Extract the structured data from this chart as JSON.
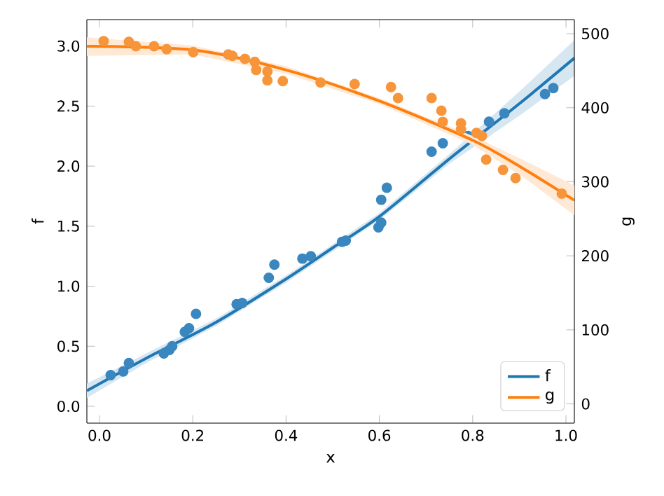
{
  "chart_data": {
    "type": "scatter",
    "xlabel": "x",
    "ylabel": "f",
    "y2label": "g",
    "xlim": [
      -0.027,
      1.018
    ],
    "ylim": [
      -0.14,
      3.22
    ],
    "y2lim": [
      -26,
      519
    ],
    "xticks": [
      {
        "value": 0,
        "label": "0.0"
      },
      {
        "value": 0.2,
        "label": "0.2"
      },
      {
        "value": 0.4,
        "label": "0.4"
      },
      {
        "value": 0.6,
        "label": "0.6"
      },
      {
        "value": 0.8,
        "label": "0.8"
      },
      {
        "value": 1,
        "label": "1.0"
      }
    ],
    "yticks": [
      {
        "value": 0,
        "label": "0.0"
      },
      {
        "value": 0.5,
        "label": "0.5"
      },
      {
        "value": 1,
        "label": "1.0"
      },
      {
        "value": 1.5,
        "label": "1.5"
      },
      {
        "value": 2,
        "label": "2.0"
      },
      {
        "value": 2.5,
        "label": "2.5"
      },
      {
        "value": 3,
        "label": "3.0"
      }
    ],
    "y2ticks": [
      0,
      100,
      200,
      300,
      400,
      500
    ],
    "legend": "bottom right",
    "series": [
      {
        "color": "#3a86bf",
        "x": [
          0.024,
          0.051,
          0.063,
          0.138,
          0.15,
          0.156,
          0.183,
          0.192,
          0.207,
          0.294,
          0.306,
          0.363,
          0.375,
          0.435,
          0.453,
          0.52,
          0.528,
          0.598,
          0.604,
          0.604,
          0.616,
          0.712,
          0.736,
          0.79,
          0.835,
          0.868,
          0.955,
          0.973
        ],
        "values": [
          0.26,
          0.29,
          0.36,
          0.44,
          0.47,
          0.5,
          0.62,
          0.65,
          0.77,
          0.85,
          0.86,
          1.07,
          1.18,
          1.23,
          1.25,
          1.37,
          1.38,
          1.49,
          1.53,
          1.72,
          1.82,
          2.12,
          2.19,
          2.25,
          2.37,
          2.44,
          2.6,
          2.65
        ]
      },
      {
        "type": "line",
        "name": "f",
        "color": "#1f77b4",
        "x": [
          -0.027,
          0.1,
          0.25,
          0.4,
          0.5,
          0.6,
          0.75,
          0.9,
          1.018
        ],
        "values": [
          0.13,
          0.4,
          0.7,
          1.06,
          1.32,
          1.58,
          2.06,
          2.52,
          2.9
        ],
        "lower": [
          0.07,
          0.36,
          0.67,
          1.03,
          1.29,
          1.55,
          2.02,
          2.42,
          2.75
        ],
        "upper": [
          0.19,
          0.44,
          0.73,
          1.09,
          1.35,
          1.61,
          2.1,
          2.62,
          3.05
        ]
      },
      {
        "axis": "y2",
        "color": "#f7953b",
        "x": [
          0.009,
          0.063,
          0.078,
          0.117,
          0.144,
          0.201,
          0.276,
          0.285,
          0.312,
          0.333,
          0.336,
          0.36,
          0.36,
          0.393,
          0.474,
          0.547,
          0.625,
          0.64,
          0.712,
          0.733,
          0.736,
          0.775,
          0.775,
          0.808,
          0.82,
          0.829,
          0.865,
          0.892,
          0.991
        ],
        "values": [
          490,
          489,
          483,
          483,
          479,
          475,
          472,
          470,
          466,
          462,
          451,
          449,
          437,
          436,
          434,
          432,
          428,
          413,
          413,
          396,
          381,
          379,
          371,
          366,
          362,
          330,
          316,
          305,
          284
        ]
      },
      {
        "type": "line",
        "axis": "y2",
        "name": "g",
        "color": "#ff7f0e",
        "x": [
          -0.027,
          0.2,
          0.4,
          0.6,
          0.8,
          0.9,
          1.018
        ],
        "values": [
          483,
          478,
          451,
          409,
          356,
          321,
          275
        ],
        "lower": [
          470,
          472,
          446,
          405,
          350,
          310,
          255
        ],
        "upper": [
          495,
          484,
          456,
          413,
          362,
          332,
          295
        ]
      }
    ]
  }
}
